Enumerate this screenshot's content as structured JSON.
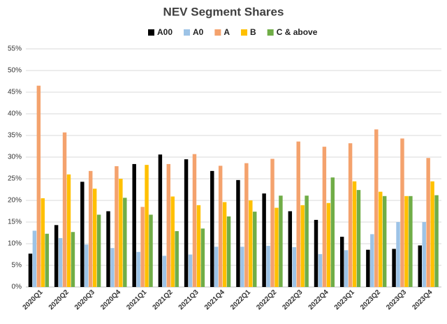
{
  "chart_data": {
    "type": "bar",
    "title": "NEV Segment Shares",
    "categories": [
      "2020Q1",
      "2020Q2",
      "2020Q3",
      "2020Q4",
      "2021Q1",
      "2021Q2",
      "2021Q3",
      "2021Q4",
      "2022Q1",
      "2022Q2",
      "2022Q3",
      "2022Q4",
      "2023Q1",
      "2023Q2",
      "2023Q3",
      "2023Q4"
    ],
    "series": [
      {
        "name": "A00",
        "color": "#000000",
        "values": [
          7.7,
          14.3,
          24.3,
          17.5,
          28.4,
          30.6,
          29.5,
          26.8,
          24.7,
          21.6,
          17.5,
          15.5,
          11.6,
          8.6,
          8.8,
          9.6
        ]
      },
      {
        "name": "A0",
        "color": "#9dc3e6",
        "values": [
          13,
          11.3,
          9.8,
          9,
          8.1,
          7.2,
          7.5,
          9.3,
          9.3,
          9.5,
          9.2,
          7.6,
          8.5,
          12.2,
          15,
          15
        ]
      },
      {
        "name": "A",
        "color": "#f4a26d",
        "values": [
          46.5,
          35.7,
          26.8,
          27.9,
          18.5,
          28.4,
          30.7,
          28,
          28.6,
          29.6,
          33.6,
          32.4,
          33.2,
          36.4,
          34.3,
          29.8
        ]
      },
      {
        "name": "B",
        "color": "#ffc000",
        "values": [
          20.5,
          26,
          22.7,
          25,
          28.2,
          20.9,
          18.9,
          19.6,
          20,
          18.3,
          18.9,
          19.4,
          24.4,
          22,
          21,
          24.4
        ]
      },
      {
        "name": "C & above",
        "color": "#70ad47",
        "values": [
          12.3,
          12.7,
          16.7,
          20.6,
          16.7,
          12.9,
          13.5,
          16.3,
          17.4,
          21.1,
          21.1,
          25.3,
          22.4,
          21,
          21,
          21.2
        ]
      }
    ],
    "ylim": [
      0,
      55
    ],
    "yticks": [
      {
        "value": 0,
        "label": "0%"
      },
      {
        "value": 5,
        "label": "5%"
      },
      {
        "value": 10,
        "label": "10%"
      },
      {
        "value": 15,
        "label": "15%"
      },
      {
        "value": 20,
        "label": "20%"
      },
      {
        "value": 25,
        "label": "25%"
      },
      {
        "value": 30,
        "label": "30%"
      },
      {
        "value": 35,
        "label": "35%"
      },
      {
        "value": 40,
        "label": "40%"
      },
      {
        "value": 45,
        "label": "45%"
      },
      {
        "value": 50,
        "label": "50%"
      },
      {
        "value": 55,
        "label": "55%"
      }
    ],
    "grid": true
  }
}
